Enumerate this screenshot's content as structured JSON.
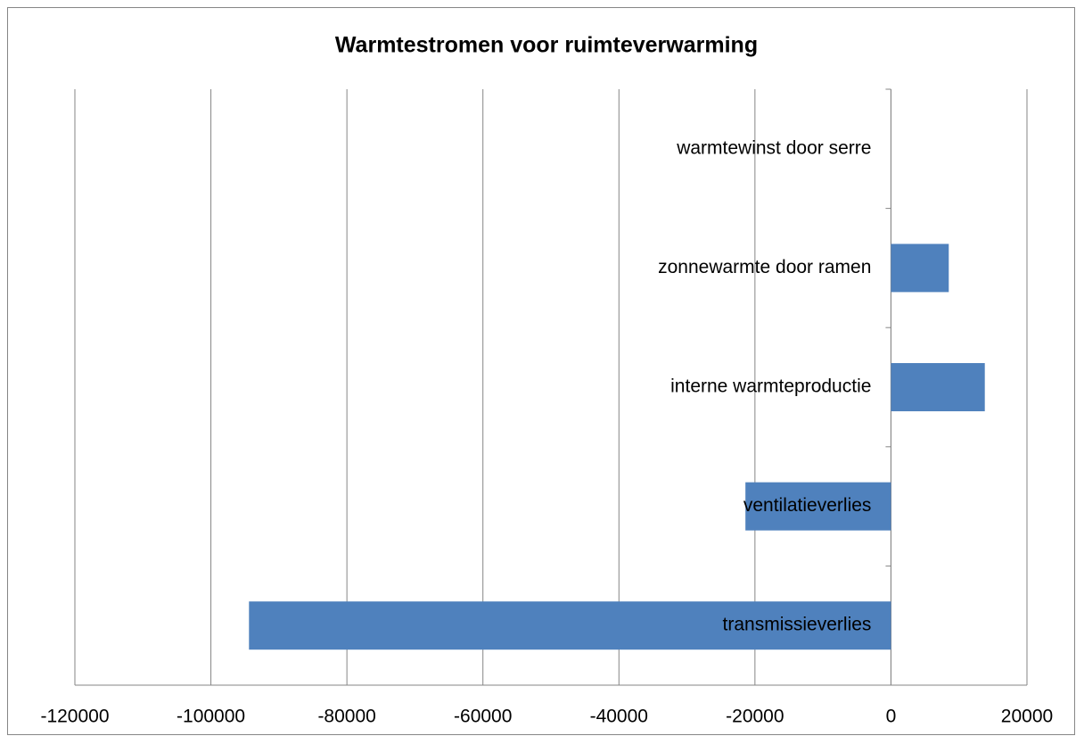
{
  "chart_data": {
    "type": "barh",
    "title": "Warmtestromen voor ruimteverwarming",
    "categories": [
      "transmissieverlies",
      "ventilatieverlies",
      "interne warmteproductie",
      "zonnewarmte door ramen",
      "warmtewinst door serre"
    ],
    "values": [
      -94400,
      -21400,
      13800,
      8500,
      0
    ],
    "color": "#4f81bd",
    "xlim": [
      -120000,
      20000
    ],
    "xticks": [
      -120000,
      -100000,
      -80000,
      -60000,
      -40000,
      -20000,
      0,
      20000
    ],
    "grid": true
  }
}
